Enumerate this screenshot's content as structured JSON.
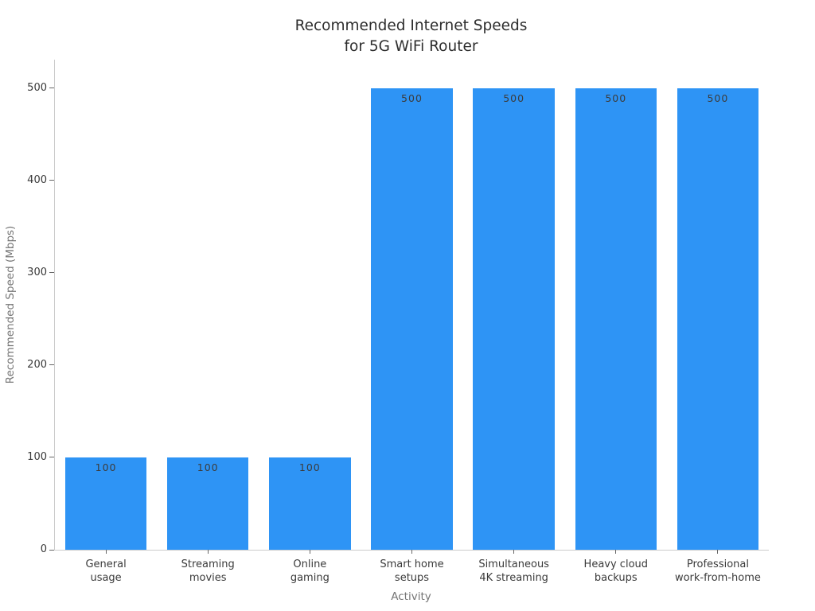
{
  "figure": {
    "title_line1": "Recommended Internet Speeds",
    "title_line2": "for 5G WiFi Router"
  },
  "chart_data": {
    "type": "bar",
    "title": "Recommended Internet Speeds\nfor 5G WiFi Router",
    "xlabel": "Activity",
    "ylabel": "Recommended Speed (Mbps)",
    "categories": [
      "General\nusage",
      "Streaming\nmovies",
      "Online\ngaming",
      "Smart home\nsetups",
      "Simultaneous\n4K streaming",
      "Heavy cloud\nbackups",
      "Professional\nwork-from-home"
    ],
    "values": [
      100,
      100,
      100,
      500,
      500,
      500,
      500
    ],
    "bar_labels": [
      "100",
      "100",
      "100",
      "500",
      "500",
      "500",
      "500"
    ],
    "yticks": [
      0,
      100,
      200,
      300,
      400,
      500
    ],
    "ylim": [
      0,
      531
    ],
    "bar_width_fraction": 0.8,
    "grid": false,
    "legend_position": "none",
    "bar_color": "#2E94F5"
  },
  "colors": {
    "title": "#2e2e2e",
    "tick_label": "#3a3a3a",
    "axis_label": "#757575",
    "spine": "#cbcbcb",
    "tick_mark": "#666666",
    "bar_value_label": "#3c3c3c"
  }
}
